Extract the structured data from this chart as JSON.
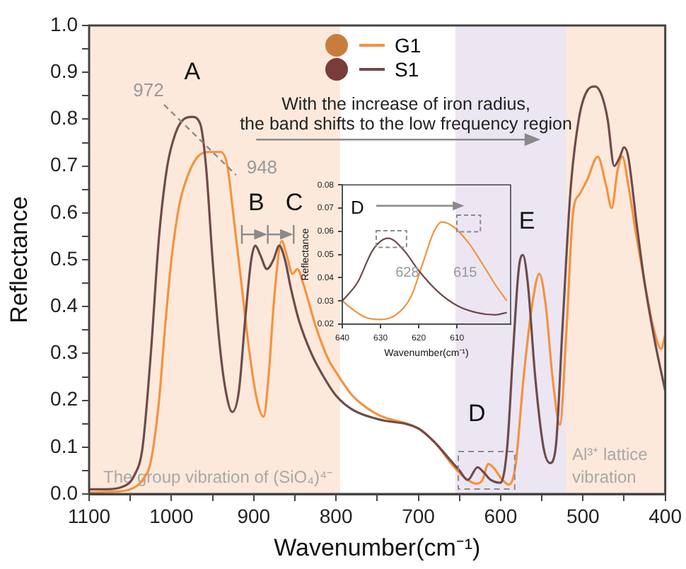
{
  "chart_data": [
    {
      "type": "line",
      "xlabel": "Wavenumber(cm⁻¹)",
      "ylabel": "Reflectance",
      "xlim": [
        1100,
        400
      ],
      "ylim": [
        0,
        1.0
      ],
      "xticks": [
        1100,
        {
          "value": 1050,
          "label": null
        },
        1000,
        {
          "value": 950,
          "label": null
        },
        900,
        {
          "value": 850,
          "label": null
        },
        800,
        {
          "value": 750,
          "label": null
        },
        700,
        {
          "value": 650,
          "label": null
        },
        600,
        {
          "value": 550,
          "label": null
        },
        500,
        {
          "value": 450,
          "label": null
        },
        400
      ],
      "yticks": [
        {
          "value": 0,
          "label": "0.0"
        },
        {
          "value": 0.05,
          "label": null
        },
        0.1,
        {
          "value": 0.15,
          "label": null
        },
        0.2,
        {
          "value": 0.25,
          "label": null
        },
        0.3,
        {
          "value": 0.35,
          "label": null
        },
        0.4,
        {
          "value": 0.45,
          "label": null
        },
        0.5,
        {
          "value": 0.55,
          "label": null
        },
        0.6,
        {
          "value": 0.65,
          "label": null
        },
        0.7,
        {
          "value": 0.75,
          "label": null
        },
        0.8,
        {
          "value": 0.85,
          "label": null
        },
        0.9,
        {
          "value": 0.95,
          "label": null
        },
        {
          "value": 1.0,
          "label": "1.0"
        }
      ],
      "grid": false,
      "legend": "top",
      "marker": "none",
      "line_style": "solid",
      "bands": [
        {
          "axis": "x",
          "from": 1100,
          "to": 795,
          "label": "The group vibration of (SiO₄)⁴⁻",
          "color": "#fde9dc"
        },
        {
          "axis": "x",
          "from": 655,
          "to": 520,
          "color": "#ece6f3"
        },
        {
          "axis": "x",
          "from": 520,
          "to": 400,
          "label": "Al³⁺ lattice vibration",
          "color": "#fde9dc"
        }
      ],
      "annotations": [
        "With the increase of iron radius,\nthe band shifts to the low frequency region",
        "A",
        "972",
        "948",
        "B",
        "C",
        "D",
        "E"
      ],
      "series": [
        {
          "name": "G1",
          "color": "#f5923e",
          "x": [
            1100,
            1070,
            1050,
            1035,
            1025,
            1015,
            1008,
            1000,
            990,
            980,
            968,
            955,
            940,
            932,
            925,
            915,
            905,
            896,
            888,
            882,
            875,
            866,
            860,
            853,
            847,
            840,
            825,
            810,
            800,
            780,
            750,
            700,
            680,
            660,
            650,
            640,
            630,
            622,
            615,
            608,
            600,
            590,
            582,
            572,
            562,
            553,
            545,
            537,
            528,
            520,
            512,
            504,
            495,
            482,
            472,
            465,
            458,
            452,
            445,
            435,
            425,
            415,
            405,
            400
          ],
          "values": [
            0.003,
            0.005,
            0.01,
            0.03,
            0.07,
            0.2,
            0.35,
            0.5,
            0.62,
            0.68,
            0.72,
            0.73,
            0.73,
            0.7,
            0.6,
            0.45,
            0.3,
            0.2,
            0.165,
            0.25,
            0.42,
            0.54,
            0.51,
            0.47,
            0.48,
            0.45,
            0.36,
            0.29,
            0.26,
            0.21,
            0.17,
            0.14,
            0.11,
            0.065,
            0.045,
            0.03,
            0.022,
            0.03,
            0.064,
            0.055,
            0.035,
            0.02,
            0.06,
            0.25,
            0.4,
            0.47,
            0.4,
            0.25,
            0.148,
            0.35,
            0.6,
            0.64,
            0.67,
            0.72,
            0.66,
            0.61,
            0.69,
            0.72,
            0.66,
            0.55,
            0.45,
            0.36,
            0.31,
            0.34
          ]
        },
        {
          "name": "S1",
          "color": "#6e4b4b",
          "x": [
            1100,
            1080,
            1060,
            1045,
            1035,
            1025,
            1015,
            1005,
            995,
            985,
            975,
            965,
            958,
            950,
            942,
            935,
            926,
            918,
            910,
            903,
            898,
            892,
            884,
            876,
            869,
            862,
            855,
            845,
            830,
            815,
            800,
            780,
            750,
            700,
            680,
            660,
            650,
            640,
            628,
            620,
            612,
            600,
            592,
            585,
            578,
            573,
            567,
            558,
            548,
            540,
            533,
            525,
            515,
            505,
            495,
            485,
            477,
            470,
            462,
            455,
            450,
            445,
            435,
            425,
            412,
            400
          ],
          "values": [
            0.01,
            0.01,
            0.015,
            0.04,
            0.1,
            0.3,
            0.55,
            0.7,
            0.77,
            0.8,
            0.805,
            0.79,
            0.7,
            0.5,
            0.33,
            0.23,
            0.175,
            0.22,
            0.38,
            0.5,
            0.53,
            0.51,
            0.48,
            0.5,
            0.53,
            0.5,
            0.44,
            0.37,
            0.3,
            0.25,
            0.21,
            0.18,
            0.16,
            0.14,
            0.11,
            0.07,
            0.05,
            0.03,
            0.057,
            0.045,
            0.03,
            0.024,
            0.1,
            0.3,
            0.48,
            0.51,
            0.45,
            0.25,
            0.1,
            0.066,
            0.1,
            0.35,
            0.65,
            0.8,
            0.86,
            0.87,
            0.85,
            0.8,
            0.7,
            0.72,
            0.74,
            0.72,
            0.58,
            0.45,
            0.32,
            0.22
          ]
        }
      ]
    },
    {
      "type": "line",
      "xlabel": "Wavenumber(cm⁻¹)",
      "ylabel": "Reflectance",
      "xlim": [
        640,
        596
      ],
      "ylim": [
        0.02,
        0.08
      ],
      "xticks": [
        640,
        630,
        620,
        610
      ],
      "yticks": [
        0.02,
        0.03,
        0.04,
        0.05,
        0.06,
        0.07,
        0.08
      ],
      "grid": false,
      "marker": "none",
      "line_style": "solid",
      "annotations": [
        "D",
        "628",
        "615"
      ],
      "series": [
        {
          "color": "#f5923e",
          "x": [
            640,
            637,
            634,
            630,
            626,
            622,
            619,
            616,
            614,
            611,
            607,
            603,
            600,
            597
          ],
          "values": [
            0.03,
            0.026,
            0.023,
            0.022,
            0.024,
            0.032,
            0.046,
            0.06,
            0.064,
            0.062,
            0.055,
            0.045,
            0.037,
            0.03
          ]
        },
        {
          "color": "#6e4b4b",
          "x": [
            640,
            636,
            632,
            628,
            624,
            620,
            615,
            610,
            605,
            600,
            597
          ],
          "values": [
            0.03,
            0.038,
            0.052,
            0.057,
            0.052,
            0.043,
            0.034,
            0.028,
            0.025,
            0.024,
            0.025
          ]
        }
      ]
    }
  ]
}
